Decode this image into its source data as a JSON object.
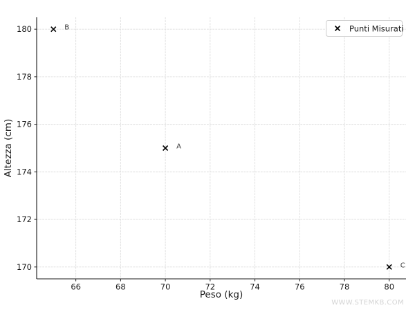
{
  "figure": {
    "watermark": "WWW.STEMKB.COM"
  },
  "chart_data": {
    "type": "scatter",
    "title": "",
    "xlabel": "Peso (kg)",
    "ylabel": "Altezza (cm)",
    "xlim": [
      64.25,
      80.75
    ],
    "ylim": [
      169.5,
      180.5
    ],
    "xticks": [
      66,
      68,
      70,
      72,
      74,
      76,
      78,
      80
    ],
    "yticks": [
      170,
      172,
      174,
      176,
      178,
      180
    ],
    "grid": true,
    "grid_style": "dashed",
    "legend": {
      "position": "upper right",
      "entries": [
        {
          "label": "Punti Misurati",
          "marker": "x"
        }
      ]
    },
    "series": [
      {
        "name": "Punti Misurati",
        "marker": "x",
        "color": "#000000",
        "points": [
          {
            "label": "B",
            "x": 65,
            "y": 180
          },
          {
            "label": "A",
            "x": 70,
            "y": 175
          },
          {
            "label": "C",
            "x": 80,
            "y": 170
          }
        ]
      }
    ]
  },
  "style": {
    "background": "#ffffff",
    "grid_color": "#dcdcdc",
    "spine_color": "#1a1a1a",
    "text_color": "#1a1a1a",
    "marker_color": "#000000",
    "point_label_color": "#3a3a3a",
    "watermark_color": "#d4d4d4",
    "legend_border_color": "#cccccc"
  }
}
